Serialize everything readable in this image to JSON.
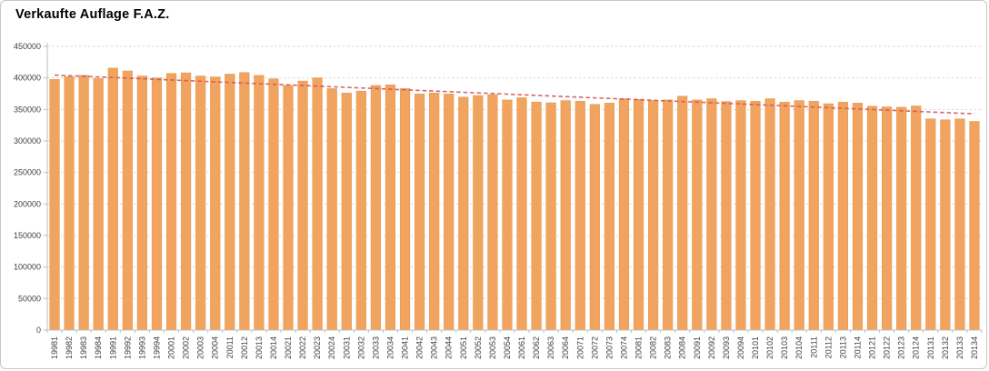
{
  "chart_data": {
    "type": "bar",
    "title": "Verkaufte Auflage F.A.Z.",
    "xlabel": "",
    "ylabel": "",
    "ylim": [
      0,
      450000
    ],
    "ytick_step": 50000,
    "grid": "horizontal-dashed",
    "legend": "none",
    "categories": [
      "19981",
      "19982",
      "19983",
      "19984",
      "19991",
      "19992",
      "19993",
      "19994",
      "20001",
      "20002",
      "20003",
      "20004",
      "20011",
      "20012",
      "20013",
      "20014",
      "20021",
      "20022",
      "20023",
      "20024",
      "20031",
      "20032",
      "20033",
      "20034",
      "20041",
      "20042",
      "20043",
      "20044",
      "20051",
      "20052",
      "20053",
      "20054",
      "20061",
      "20062",
      "20063",
      "20064",
      "20071",
      "20072",
      "20073",
      "20074",
      "20081",
      "20082",
      "20083",
      "20084",
      "20091",
      "20092",
      "20093",
      "20094",
      "20101",
      "20102",
      "20103",
      "20104",
      "20111",
      "20112",
      "20113",
      "20114",
      "20121",
      "20122",
      "20123",
      "20124",
      "20131",
      "20132",
      "20133",
      "20134"
    ],
    "values": [
      397500,
      402000,
      404000,
      399000,
      415500,
      411000,
      403000,
      400000,
      407000,
      408000,
      403000,
      401500,
      406000,
      408500,
      404000,
      398500,
      388000,
      395000,
      400000,
      383000,
      376000,
      379000,
      388000,
      389000,
      383000,
      374500,
      376000,
      374500,
      369500,
      372000,
      373500,
      365000,
      368500,
      361500,
      360500,
      364000,
      363000,
      358000,
      360000,
      367000,
      366000,
      364000,
      365000,
      371000,
      365000,
      367000,
      362500,
      364000,
      363000,
      367000,
      361500,
      364000,
      363000,
      359000,
      361500,
      360000,
      355000,
      354000,
      353500,
      355500,
      335000,
      333500,
      335000,
      331000
    ],
    "trendline": {
      "type": "linear",
      "style": "dashed",
      "start": 404500,
      "end": 343000
    },
    "colors": {
      "bar": "#F1A45F",
      "bar_border": "#E59A51",
      "trend": "#D65757",
      "grid": "#DADADA",
      "axis": "#BFBFBF",
      "tick_text": "#404040",
      "title_text": "#000000",
      "background": "#FFFFFF",
      "frame_border": "#C6C6C6"
    }
  }
}
